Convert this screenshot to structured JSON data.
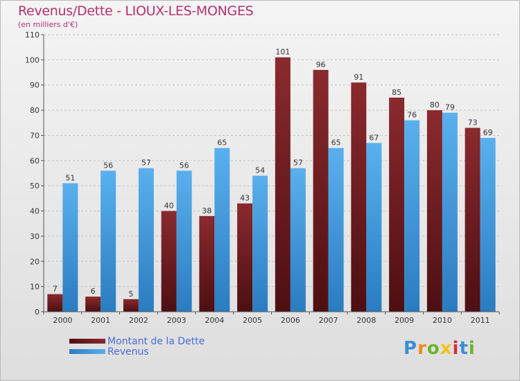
{
  "header": {
    "title": "Revenus/Dette - LIOUX-LES-MONGES",
    "subtitle": "(en milliers d'€)"
  },
  "legend": {
    "debt_label": "Montant de la Dette",
    "revenue_label": "Revenus"
  },
  "logo": {
    "letters": [
      "P",
      "r",
      "o",
      "x",
      "i",
      "t",
      "i"
    ],
    "colors": [
      "#3a8fd6",
      "#f08a1c",
      "#6bb52e",
      "#f0c21c",
      "#d62f3a",
      "#3a8fd6",
      "#6bb52e"
    ]
  },
  "colors": {
    "debt": "#7a1f23",
    "debt_dark": "#4d0f12",
    "revenue": "#4aa3e6",
    "revenue_dark": "#2a7cc0",
    "title": "#b5326d"
  },
  "chart_data": {
    "type": "bar",
    "categories": [
      "2000",
      "2001",
      "2002",
      "2003",
      "2004",
      "2005",
      "2006",
      "2007",
      "2008",
      "2009",
      "2010",
      "2011"
    ],
    "series": [
      {
        "name": "Montant de la Dette",
        "values": [
          7,
          6,
          5,
          40,
          38,
          43,
          101,
          96,
          91,
          85,
          80,
          73
        ]
      },
      {
        "name": "Revenus",
        "values": [
          51,
          56,
          57,
          56,
          65,
          54,
          57,
          65,
          67,
          76,
          79,
          69
        ]
      }
    ],
    "ylim": [
      0,
      110
    ],
    "yticks": [
      0,
      10,
      20,
      30,
      40,
      50,
      60,
      70,
      80,
      90,
      100,
      110
    ],
    "grid": true,
    "legend_position": "bottom-left"
  }
}
